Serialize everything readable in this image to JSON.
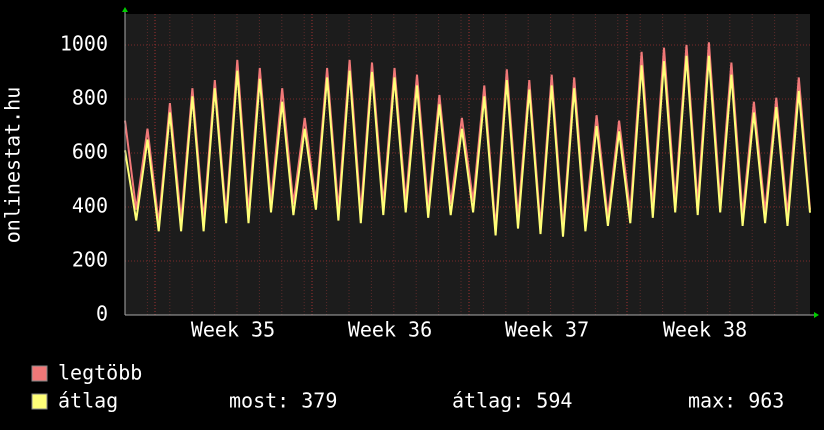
{
  "chart_data": {
    "type": "line",
    "y_label": "onlinestat.hu",
    "x_labels": [
      "Week 35",
      "Week 36",
      "Week 37",
      "Week 38"
    ],
    "ylim": [
      0,
      1115
    ],
    "yticks": [
      0,
      200,
      400,
      600,
      800,
      1000
    ],
    "grid": true,
    "series": [
      {
        "name": "legtöbb",
        "color": "#f07878",
        "values": [
          720,
          390,
          690,
          340,
          785,
          350,
          840,
          350,
          870,
          370,
          945,
          380,
          915,
          420,
          840,
          410,
          730,
          420,
          915,
          390,
          945,
          380,
          935,
          410,
          915,
          420,
          890,
          400,
          815,
          410,
          730,
          420,
          850,
          320,
          910,
          360,
          870,
          330,
          890,
          320,
          880,
          350,
          740,
          360,
          720,
          380,
          975,
          400,
          990,
          420,
          1000,
          410,
          1010,
          420,
          935,
          370,
          790,
          380,
          805,
          370,
          880,
          390
        ]
      },
      {
        "name": "átlag",
        "color": "#ffff78",
        "values": [
          610,
          350,
          650,
          310,
          750,
          310,
          810,
          310,
          840,
          340,
          905,
          340,
          875,
          380,
          790,
          370,
          690,
          390,
          880,
          350,
          905,
          340,
          900,
          370,
          880,
          380,
          850,
          360,
          780,
          370,
          690,
          380,
          810,
          295,
          870,
          320,
          835,
          300,
          850,
          290,
          840,
          310,
          700,
          330,
          680,
          340,
          925,
          360,
          940,
          380,
          960,
          370,
          960,
          380,
          890,
          330,
          750,
          340,
          770,
          330,
          830,
          379
        ]
      }
    ],
    "stats": [
      "most: 379",
      "átlag: 594",
      "max: 963"
    ]
  }
}
